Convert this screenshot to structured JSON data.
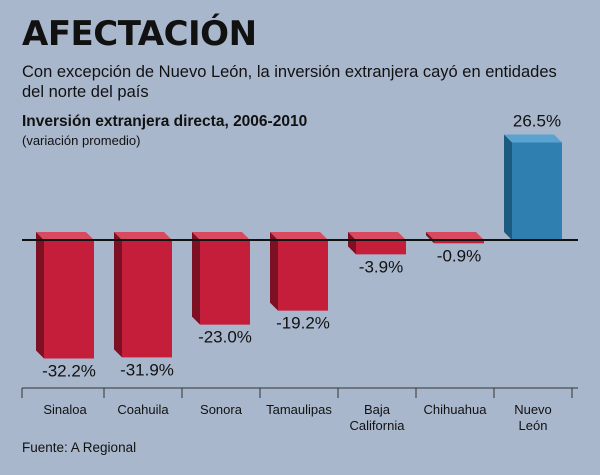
{
  "header": {
    "title": "AFECTACIÓN",
    "subtitle": "Con excepción de Nuevo León, la inversión extranjera cayó en entidades del norte del país"
  },
  "chart_title": "Inversión extranjera directa, 2006-2010",
  "chart_subtitle": "(variación promedio)",
  "source": "Fuente: A Regional",
  "colors": {
    "background": "#a9b7cc",
    "negative_front": "#c41e3a",
    "negative_top": "#d94a60",
    "negative_side": "#7e1024",
    "positive_front": "#2f7fb0",
    "positive_top": "#5aa3cf",
    "positive_side": "#1c5a80"
  },
  "chart_data": {
    "type": "bar",
    "title": "Inversión extranjera directa, 2006-2010",
    "subtitle": "(variación promedio)",
    "categories": [
      "Sinaloa",
      "Coahuila",
      "Sonora",
      "Tamaulipas",
      "Baja California",
      "Chihuahua",
      "Nuevo León"
    ],
    "category_lines": [
      [
        "Sinaloa"
      ],
      [
        "Coahuila"
      ],
      [
        "Sonora"
      ],
      [
        "Tamaulipas"
      ],
      [
        "Baja",
        "California"
      ],
      [
        "Chihuahua"
      ],
      [
        "Nuevo",
        "León"
      ]
    ],
    "values": [
      -32.2,
      -31.9,
      -23.0,
      -19.2,
      -3.9,
      -0.9,
      26.5
    ],
    "labels": [
      "-32.2%",
      "-31.9%",
      "-23.0%",
      "-19.2%",
      "-3.9%",
      "-0.9%",
      "26.5%"
    ],
    "ylim": [
      -35,
      30
    ],
    "grid": false,
    "legend": "none"
  }
}
